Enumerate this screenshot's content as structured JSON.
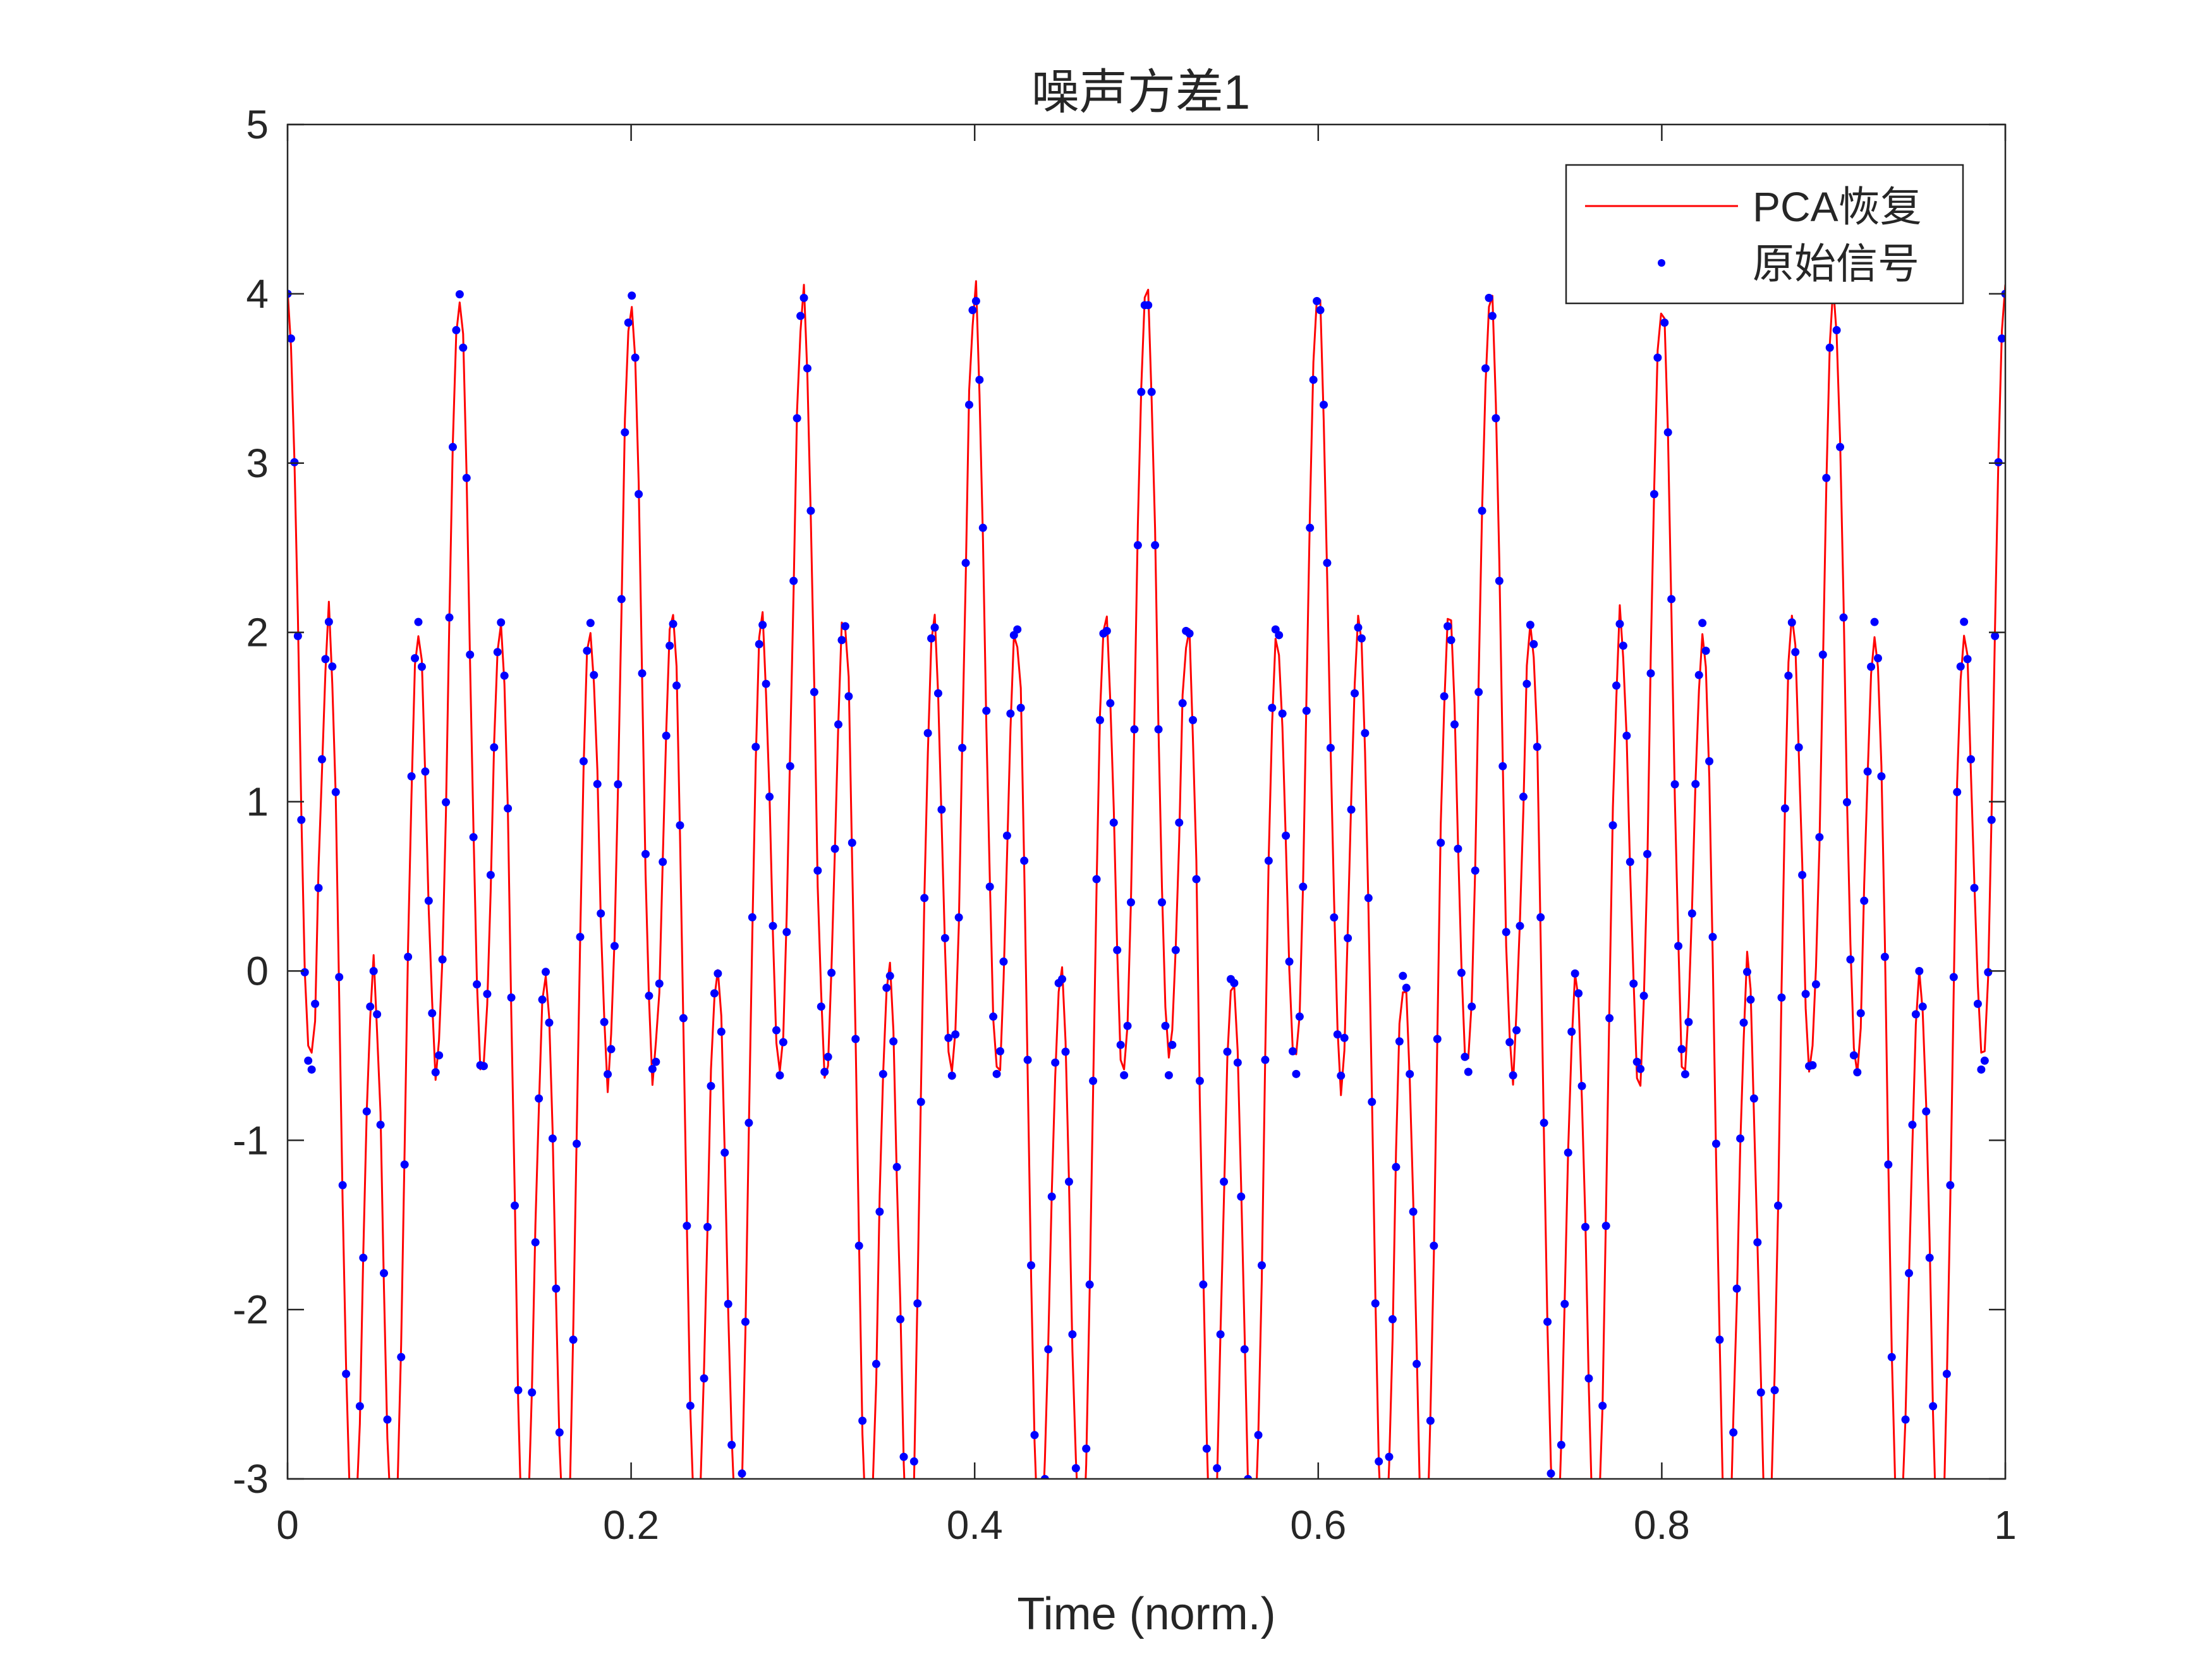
{
  "chart_data": {
    "type": "line",
    "title": "噪声方差1",
    "xlabel": "Time (norm.)",
    "ylabel": "",
    "xlim": [
      0,
      1
    ],
    "ylim": [
      -3,
      5
    ],
    "xticks": [
      0,
      0.2,
      0.4,
      0.6,
      0.8,
      1
    ],
    "xtick_labels": [
      "0",
      "0.2",
      "0.4",
      "0.6",
      "0.8",
      "1"
    ],
    "yticks": [
      -3,
      -2,
      -1,
      0,
      1,
      2,
      3,
      4,
      5
    ],
    "ytick_labels": [
      "-3",
      "-2",
      "-1",
      "0",
      "1",
      "2",
      "3",
      "4",
      "5"
    ],
    "grid": false,
    "legend": {
      "position": "top-right",
      "entries": [
        "PCA恢复",
        "原始信号"
      ]
    },
    "signal_model": "2*cos(2*pi*10*t) + 2*cos(2*pi*40*t)",
    "n_points": 500,
    "series": [
      {
        "name": "PCA恢复",
        "style": "line",
        "color": "#ff0000",
        "noise_amplitude": 0.12
      },
      {
        "name": "原始信号",
        "style": "markers",
        "color": "#0000ff"
      }
    ]
  }
}
